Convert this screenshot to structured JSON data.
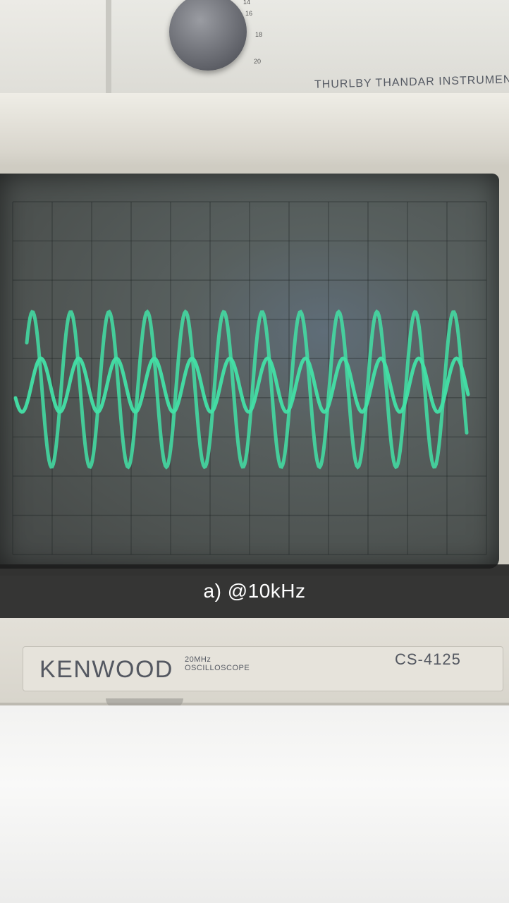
{
  "generator": {
    "brand": "THURLBY THANDAR INSTRUMENT",
    "knob_scale": [
      "14",
      "16",
      "18",
      "20"
    ]
  },
  "caption": "a) @10kHz",
  "oscilloscope": {
    "brand": "KENWOOD",
    "bandwidth": "20MHz",
    "type": "OSCILLOSCOPE",
    "model": "CS-4125"
  },
  "colors": {
    "trace": "#43e0a6",
    "screen": "#4d5250",
    "caption_bar": "#1c1c1c"
  }
}
